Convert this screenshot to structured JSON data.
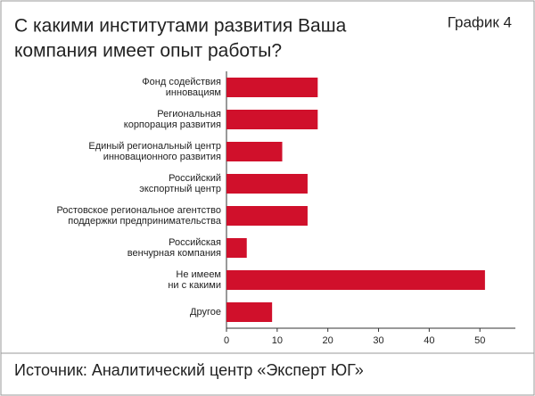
{
  "chart_data": {
    "type": "bar",
    "orientation": "horizontal",
    "title": [
      "С какими институтами развития Ваша",
      "компания имеет опыт работы?"
    ],
    "label": "График 4",
    "source": "Источник: Аналитический центр «Эксперт ЮГ»",
    "categories": [
      [
        "Фонд содействия",
        "инновациям"
      ],
      [
        "Региональная",
        "корпорация развития"
      ],
      [
        "Единый региональный центр",
        "инновационного развития"
      ],
      [
        "Российский",
        "экспортный центр"
      ],
      [
        "Ростовское региональное агентство",
        "поддержки предпринимательства"
      ],
      [
        "Российская",
        "венчурная компания"
      ],
      [
        "Не имеем",
        "ни с какими"
      ],
      [
        "Другое"
      ]
    ],
    "values": [
      18,
      18,
      11,
      16,
      16,
      4,
      51,
      9
    ],
    "color": "#d0102b",
    "xlim": [
      0,
      57
    ],
    "xticks": [
      0,
      10,
      20,
      30,
      40,
      50
    ]
  }
}
